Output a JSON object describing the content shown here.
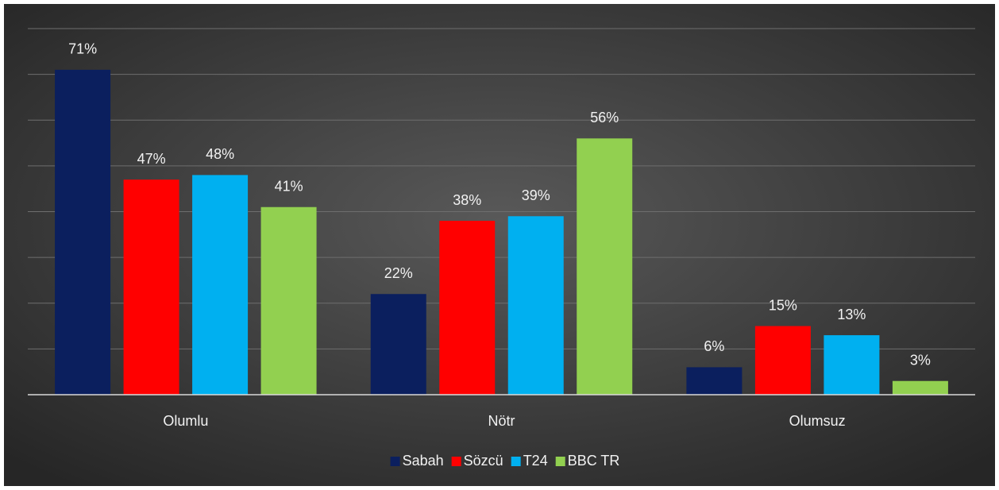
{
  "chart_data": {
    "type": "bar",
    "categories": [
      "Olumlu",
      "Nötr",
      "Olumsuz"
    ],
    "series": [
      {
        "name": "Sabah",
        "color": "#0b1f5e",
        "values": [
          71,
          22,
          6
        ],
        "value_labels": [
          "71%",
          "22%",
          "6%"
        ]
      },
      {
        "name": "Sözcü",
        "color": "#ff0000",
        "values": [
          47,
          38,
          15
        ],
        "value_labels": [
          "47%",
          "38%",
          "15%"
        ]
      },
      {
        "name": "T24",
        "color": "#00b0f0",
        "values": [
          48,
          39,
          13
        ],
        "value_labels": [
          "48%",
          "39%",
          "13%"
        ]
      },
      {
        "name": "BBC TR",
        "color": "#92d050",
        "values": [
          41,
          56,
          3
        ],
        "value_labels": [
          "41%",
          "56%",
          "3%"
        ]
      }
    ],
    "ylim": [
      0,
      80
    ],
    "yticks": [
      0,
      10,
      20,
      30,
      40,
      50,
      60,
      70,
      80
    ],
    "grid": true,
    "legend": "bottom"
  }
}
